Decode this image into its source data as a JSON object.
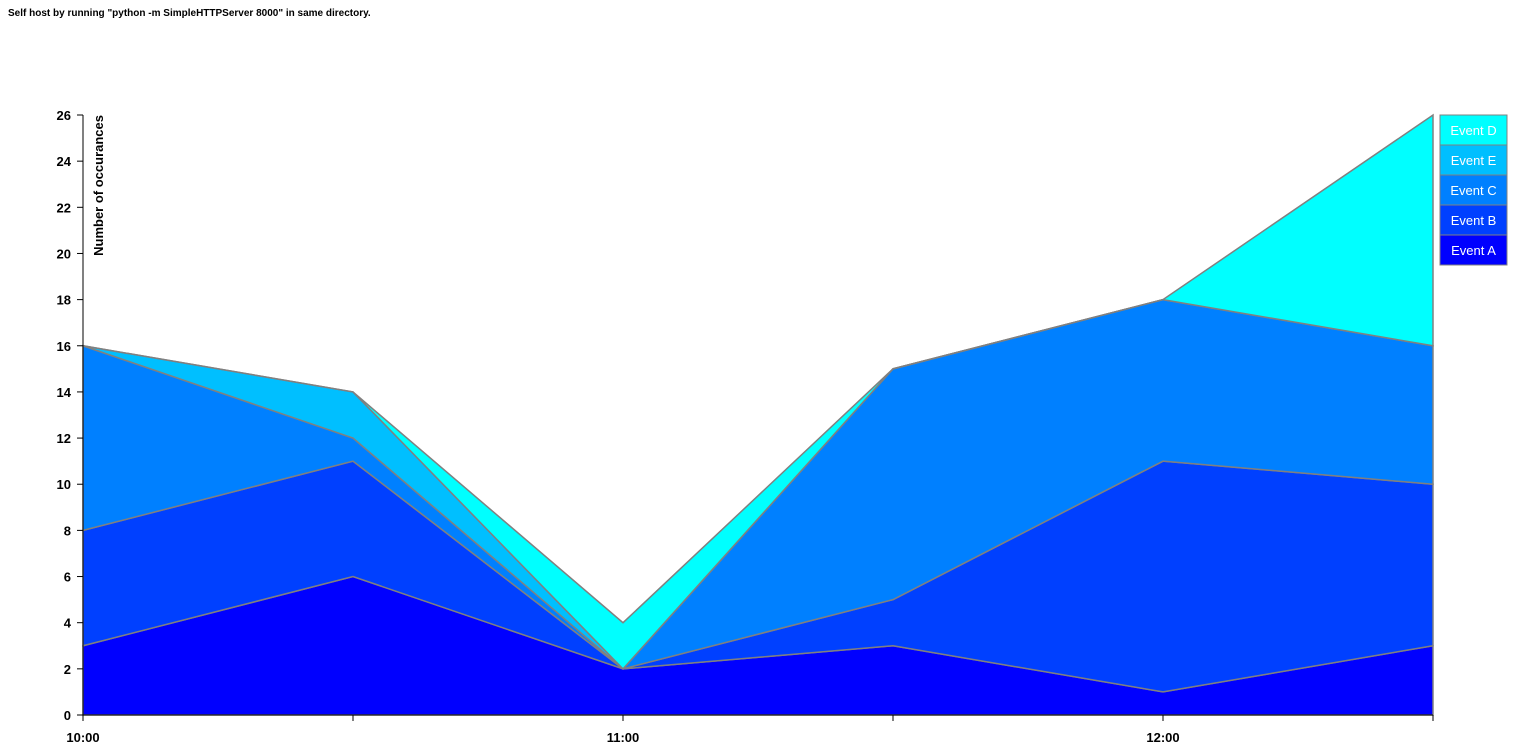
{
  "page": {
    "header_note": "Self host by running \"python -m SimpleHTTPServer 8000\" in same directory."
  },
  "chart_data": {
    "type": "area",
    "stacked": true,
    "x": [
      "10:00",
      "10:30",
      "11:00",
      "11:30",
      "12:00",
      "12:30"
    ],
    "x_tick_labels": [
      "10:00",
      "11:00",
      "12:00"
    ],
    "ylabel": "Number of occurances",
    "ylim": [
      0,
      26
    ],
    "y_ticks": [
      0,
      2,
      4,
      6,
      8,
      10,
      12,
      14,
      16,
      18,
      20,
      22,
      24,
      26
    ],
    "grid": false,
    "legend_position": "top-right",
    "series": [
      {
        "name": "Event A",
        "color": "#0000ff",
        "values": [
          3,
          6,
          2,
          3,
          1,
          3
        ]
      },
      {
        "name": "Event B",
        "color": "#0040ff",
        "values": [
          5,
          5,
          0,
          2,
          10,
          7
        ]
      },
      {
        "name": "Event C",
        "color": "#0080ff",
        "values": [
          8,
          1,
          0,
          10,
          7,
          6
        ]
      },
      {
        "name": "Event E",
        "color": "#00bfff",
        "values": [
          0,
          2,
          0,
          0,
          0,
          0
        ]
      },
      {
        "name": "Event D",
        "color": "#00ffff",
        "values": [
          0,
          0,
          2,
          0,
          0,
          10
        ]
      }
    ],
    "legend_order": [
      "Event D",
      "Event E",
      "Event C",
      "Event B",
      "Event A"
    ],
    "stroke_color": "#808080"
  }
}
